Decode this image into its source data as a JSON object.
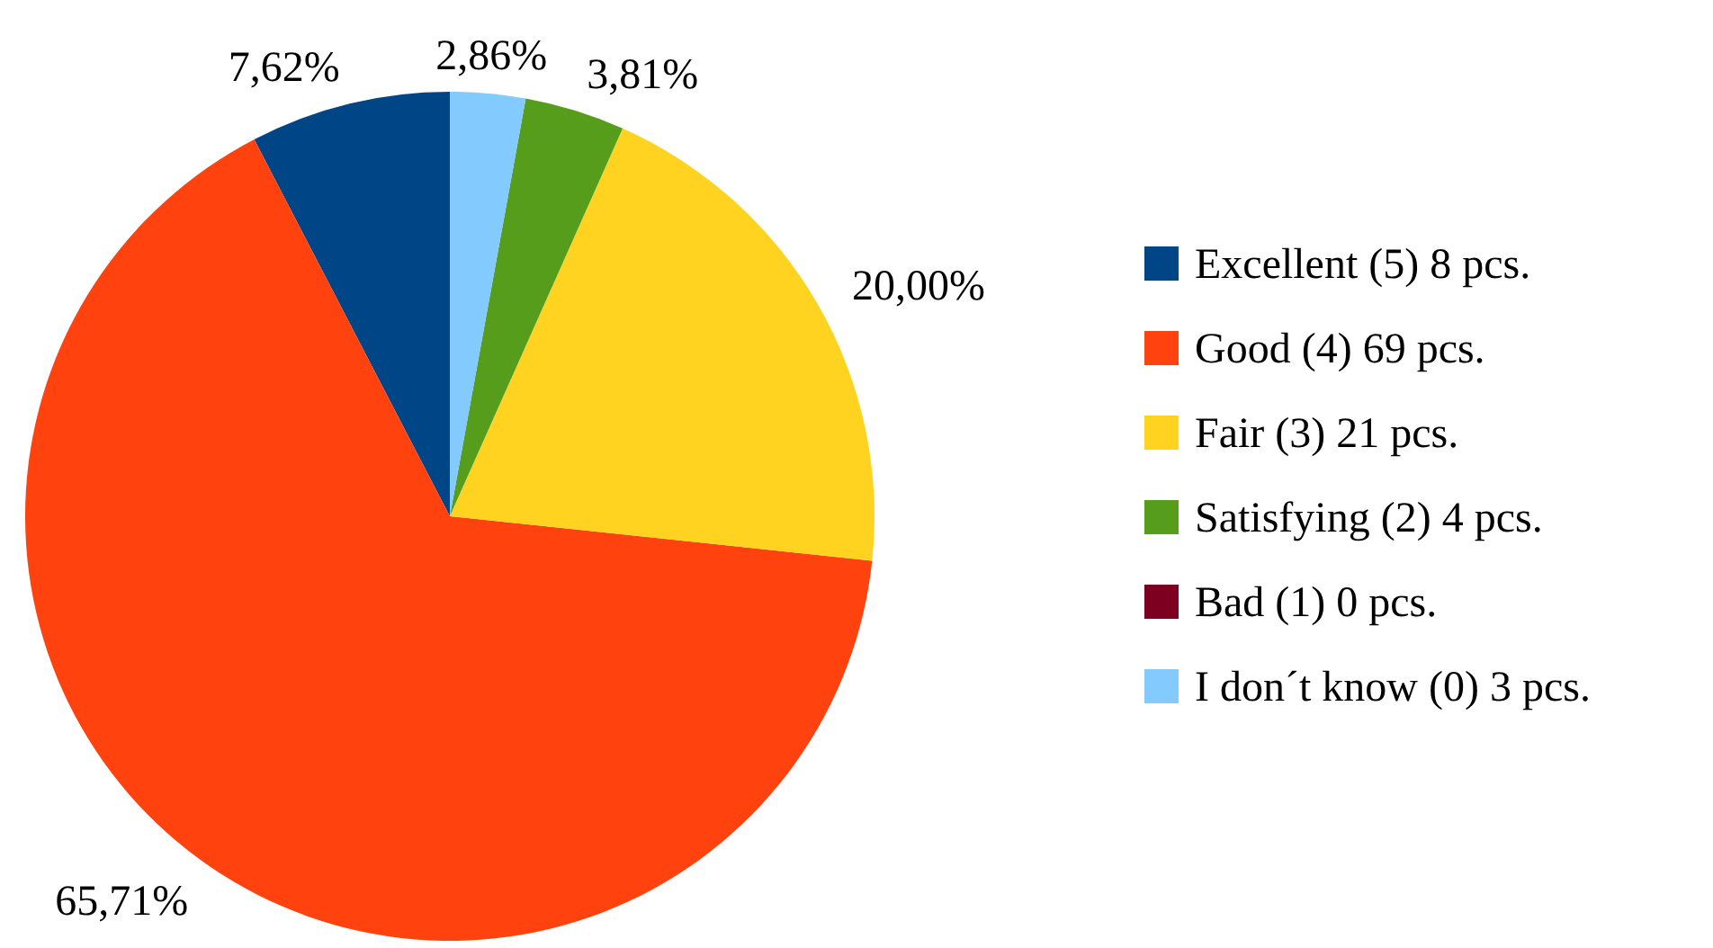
{
  "chart_data": {
    "type": "pie",
    "categories": [
      "Excellent (5) 8 pcs.",
      "Good (4) 69 pcs.",
      "Fair (3) 21 pcs.",
      "Satisfying (2) 4 pcs.",
      "Bad (1) 0 pcs.",
      "I don´t know (0) 3 pcs."
    ],
    "values": [
      7.62,
      65.71,
      20.0,
      3.81,
      0,
      2.86
    ],
    "value_labels": [
      "7,62%",
      "65,71%",
      "20,00%",
      "3,81%",
      null,
      "2,86%"
    ],
    "colors": [
      "#004586",
      "#ff420e",
      "#ffd320",
      "#579d1c",
      "#7e0021",
      "#83caff"
    ],
    "legend": "right"
  }
}
